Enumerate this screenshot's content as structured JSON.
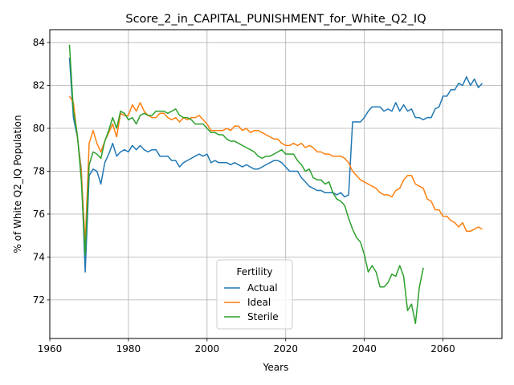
{
  "chart_data": {
    "type": "line",
    "title": "Score_2_in_CAPITAL_PUNISHMENT_for_White_Q2_IQ",
    "xlabel": "Years",
    "ylabel": "% of White Q2_IQ Population",
    "xlim": [
      1960,
      2075
    ],
    "ylim": [
      70.2,
      84.6
    ],
    "xticks": [
      1960,
      1980,
      2000,
      2020,
      2040,
      2060
    ],
    "yticks": [
      72,
      74,
      76,
      78,
      80,
      82,
      84
    ],
    "grid": true,
    "legend": {
      "title": "Fertility",
      "placement": "lower-center"
    },
    "series": [
      {
        "name": "Actual",
        "color": "#1f77b4",
        "points": [
          [
            1965,
            83.3
          ],
          [
            1966,
            80.5
          ],
          [
            1967,
            79.6
          ],
          [
            1968,
            78.1
          ],
          [
            1969,
            73.3
          ],
          [
            1970,
            77.8
          ],
          [
            1971,
            78.1
          ],
          [
            1972,
            78.0
          ],
          [
            1973,
            77.4
          ],
          [
            1974,
            78.4
          ],
          [
            1975,
            78.8
          ],
          [
            1976,
            79.3
          ],
          [
            1977,
            78.7
          ],
          [
            1978,
            78.9
          ],
          [
            1979,
            79.0
          ],
          [
            1980,
            78.9
          ],
          [
            1981,
            79.2
          ],
          [
            1982,
            79.0
          ],
          [
            1983,
            79.2
          ],
          [
            1984,
            79.0
          ],
          [
            1985,
            78.9
          ],
          [
            1986,
            79.0
          ],
          [
            1987,
            79.0
          ],
          [
            1988,
            78.7
          ],
          [
            1989,
            78.7
          ],
          [
            1990,
            78.7
          ],
          [
            1991,
            78.5
          ],
          [
            1992,
            78.5
          ],
          [
            1993,
            78.2
          ],
          [
            1994,
            78.4
          ],
          [
            1995,
            78.5
          ],
          [
            1996,
            78.6
          ],
          [
            1997,
            78.7
          ],
          [
            1998,
            78.8
          ],
          [
            1999,
            78.7
          ],
          [
            2000,
            78.8
          ],
          [
            2001,
            78.4
          ],
          [
            2002,
            78.5
          ],
          [
            2003,
            78.4
          ],
          [
            2004,
            78.4
          ],
          [
            2005,
            78.4
          ],
          [
            2006,
            78.3
          ],
          [
            2007,
            78.4
          ],
          [
            2008,
            78.3
          ],
          [
            2009,
            78.2
          ],
          [
            2010,
            78.3
          ],
          [
            2011,
            78.2
          ],
          [
            2012,
            78.1
          ],
          [
            2013,
            78.1
          ],
          [
            2014,
            78.2
          ],
          [
            2015,
            78.3
          ],
          [
            2016,
            78.4
          ],
          [
            2017,
            78.5
          ],
          [
            2018,
            78.5
          ],
          [
            2019,
            78.4
          ],
          [
            2020,
            78.2
          ],
          [
            2021,
            78.0
          ],
          [
            2022,
            78.0
          ],
          [
            2023,
            78.0
          ],
          [
            2024,
            77.7
          ],
          [
            2025,
            77.5
          ],
          [
            2026,
            77.3
          ],
          [
            2027,
            77.2
          ],
          [
            2028,
            77.1
          ],
          [
            2029,
            77.1
          ],
          [
            2030,
            77.0
          ],
          [
            2031,
            77.0
          ],
          [
            2032,
            77.0
          ],
          [
            2033,
            76.9
          ],
          [
            2034,
            77.0
          ],
          [
            2035,
            76.8
          ],
          [
            2036,
            76.9
          ],
          [
            2037,
            80.3
          ],
          [
            2038,
            80.3
          ],
          [
            2039,
            80.3
          ],
          [
            2040,
            80.5
          ],
          [
            2041,
            80.8
          ],
          [
            2042,
            81.0
          ],
          [
            2043,
            81.0
          ],
          [
            2044,
            81.0
          ],
          [
            2045,
            80.8
          ],
          [
            2046,
            80.9
          ],
          [
            2047,
            80.8
          ],
          [
            2048,
            81.2
          ],
          [
            2049,
            80.8
          ],
          [
            2050,
            81.1
          ],
          [
            2051,
            80.8
          ],
          [
            2052,
            80.9
          ],
          [
            2053,
            80.5
          ],
          [
            2054,
            80.5
          ],
          [
            2055,
            80.4
          ],
          [
            2056,
            80.5
          ],
          [
            2057,
            80.5
          ],
          [
            2058,
            80.9
          ],
          [
            2059,
            81.0
          ],
          [
            2060,
            81.5
          ],
          [
            2061,
            81.5
          ],
          [
            2062,
            81.8
          ],
          [
            2063,
            81.8
          ],
          [
            2064,
            82.1
          ],
          [
            2065,
            82.0
          ],
          [
            2066,
            82.4
          ],
          [
            2067,
            82.0
          ],
          [
            2068,
            82.3
          ],
          [
            2069,
            81.9
          ],
          [
            2070,
            82.1
          ]
        ]
      },
      {
        "name": "Ideal",
        "color": "#ff7f0e",
        "points": [
          [
            1965,
            81.5
          ],
          [
            1966,
            81.2
          ],
          [
            1967,
            79.6
          ],
          [
            1968,
            78.0
          ],
          [
            1969,
            74.6
          ],
          [
            1970,
            79.3
          ],
          [
            1971,
            79.9
          ],
          [
            1972,
            79.3
          ],
          [
            1973,
            78.9
          ],
          [
            1974,
            79.4
          ],
          [
            1975,
            79.8
          ],
          [
            1976,
            80.2
          ],
          [
            1977,
            79.6
          ],
          [
            1978,
            80.7
          ],
          [
            1979,
            80.6
          ],
          [
            1980,
            80.6
          ],
          [
            1981,
            81.1
          ],
          [
            1982,
            80.8
          ],
          [
            1983,
            81.2
          ],
          [
            1984,
            80.8
          ],
          [
            1985,
            80.6
          ],
          [
            1986,
            80.5
          ],
          [
            1987,
            80.5
          ],
          [
            1988,
            80.7
          ],
          [
            1989,
            80.7
          ],
          [
            1990,
            80.5
          ],
          [
            1991,
            80.4
          ],
          [
            1992,
            80.5
          ],
          [
            1993,
            80.3
          ],
          [
            1994,
            80.5
          ],
          [
            1995,
            80.4
          ],
          [
            1996,
            80.5
          ],
          [
            1997,
            80.5
          ],
          [
            1998,
            80.6
          ],
          [
            1999,
            80.4
          ],
          [
            2000,
            80.2
          ],
          [
            2001,
            79.9
          ],
          [
            2002,
            79.9
          ],
          [
            2003,
            79.9
          ],
          [
            2004,
            79.9
          ],
          [
            2005,
            80.0
          ],
          [
            2006,
            79.9
          ],
          [
            2007,
            80.1
          ],
          [
            2008,
            80.1
          ],
          [
            2009,
            79.9
          ],
          [
            2010,
            80.0
          ],
          [
            2011,
            79.8
          ],
          [
            2012,
            79.9
          ],
          [
            2013,
            79.9
          ],
          [
            2014,
            79.8
          ],
          [
            2015,
            79.7
          ],
          [
            2016,
            79.6
          ],
          [
            2017,
            79.5
          ],
          [
            2018,
            79.5
          ],
          [
            2019,
            79.3
          ],
          [
            2020,
            79.2
          ],
          [
            2021,
            79.2
          ],
          [
            2022,
            79.3
          ],
          [
            2023,
            79.2
          ],
          [
            2024,
            79.3
          ],
          [
            2025,
            79.1
          ],
          [
            2026,
            79.2
          ],
          [
            2027,
            79.1
          ],
          [
            2028,
            78.9
          ],
          [
            2029,
            78.9
          ],
          [
            2030,
            78.8
          ],
          [
            2031,
            78.8
          ],
          [
            2032,
            78.7
          ],
          [
            2033,
            78.7
          ],
          [
            2034,
            78.7
          ],
          [
            2035,
            78.6
          ],
          [
            2036,
            78.4
          ],
          [
            2037,
            78.0
          ],
          [
            2038,
            77.8
          ],
          [
            2039,
            77.6
          ],
          [
            2040,
            77.5
          ],
          [
            2041,
            77.4
          ],
          [
            2042,
            77.3
          ],
          [
            2043,
            77.2
          ],
          [
            2044,
            77.0
          ],
          [
            2045,
            76.9
          ],
          [
            2046,
            76.9
          ],
          [
            2047,
            76.8
          ],
          [
            2048,
            77.1
          ],
          [
            2049,
            77.2
          ],
          [
            2050,
            77.6
          ],
          [
            2051,
            77.8
          ],
          [
            2052,
            77.8
          ],
          [
            2053,
            77.4
          ],
          [
            2054,
            77.3
          ],
          [
            2055,
            77.2
          ],
          [
            2056,
            76.7
          ],
          [
            2057,
            76.6
          ],
          [
            2058,
            76.2
          ],
          [
            2059,
            76.2
          ],
          [
            2060,
            75.9
          ],
          [
            2061,
            75.9
          ],
          [
            2062,
            75.7
          ],
          [
            2063,
            75.6
          ],
          [
            2064,
            75.4
          ],
          [
            2065,
            75.6
          ],
          [
            2066,
            75.2
          ],
          [
            2067,
            75.2
          ],
          [
            2068,
            75.3
          ],
          [
            2069,
            75.4
          ],
          [
            2070,
            75.3
          ]
        ]
      },
      {
        "name": "Sterile",
        "color": "#2ca02c",
        "points": [
          [
            1965,
            83.9
          ],
          [
            1966,
            80.8
          ],
          [
            1967,
            79.7
          ],
          [
            1968,
            77.6
          ],
          [
            1969,
            74.1
          ],
          [
            1970,
            78.3
          ],
          [
            1971,
            78.9
          ],
          [
            1972,
            78.8
          ],
          [
            1973,
            78.6
          ],
          [
            1974,
            79.4
          ],
          [
            1975,
            79.9
          ],
          [
            1976,
            80.5
          ],
          [
            1977,
            80.0
          ],
          [
            1978,
            80.8
          ],
          [
            1979,
            80.7
          ],
          [
            1980,
            80.4
          ],
          [
            1981,
            80.5
          ],
          [
            1982,
            80.2
          ],
          [
            1983,
            80.6
          ],
          [
            1984,
            80.7
          ],
          [
            1985,
            80.6
          ],
          [
            1986,
            80.6
          ],
          [
            1987,
            80.8
          ],
          [
            1988,
            80.8
          ],
          [
            1989,
            80.8
          ],
          [
            1990,
            80.7
          ],
          [
            1991,
            80.8
          ],
          [
            1992,
            80.9
          ],
          [
            1993,
            80.6
          ],
          [
            1994,
            80.5
          ],
          [
            1995,
            80.5
          ],
          [
            1996,
            80.4
          ],
          [
            1997,
            80.2
          ],
          [
            1998,
            80.2
          ],
          [
            1999,
            80.2
          ],
          [
            2000,
            80.0
          ],
          [
            2001,
            79.8
          ],
          [
            2002,
            79.8
          ],
          [
            2003,
            79.7
          ],
          [
            2004,
            79.7
          ],
          [
            2005,
            79.5
          ],
          [
            2006,
            79.4
          ],
          [
            2007,
            79.4
          ],
          [
            2008,
            79.3
          ],
          [
            2009,
            79.2
          ],
          [
            2010,
            79.1
          ],
          [
            2011,
            79.0
          ],
          [
            2012,
            78.9
          ],
          [
            2013,
            78.7
          ],
          [
            2014,
            78.6
          ],
          [
            2015,
            78.7
          ],
          [
            2016,
            78.7
          ],
          [
            2017,
            78.8
          ],
          [
            2018,
            78.9
          ],
          [
            2019,
            79.0
          ],
          [
            2020,
            78.8
          ],
          [
            2021,
            78.8
          ],
          [
            2022,
            78.8
          ],
          [
            2023,
            78.5
          ],
          [
            2024,
            78.3
          ],
          [
            2025,
            78.0
          ],
          [
            2026,
            78.1
          ],
          [
            2027,
            77.7
          ],
          [
            2028,
            77.6
          ],
          [
            2029,
            77.6
          ],
          [
            2030,
            77.4
          ],
          [
            2031,
            77.5
          ],
          [
            2032,
            77.0
          ],
          [
            2033,
            76.7
          ],
          [
            2034,
            76.6
          ],
          [
            2035,
            76.4
          ],
          [
            2036,
            75.8
          ],
          [
            2037,
            75.3
          ],
          [
            2038,
            74.9
          ],
          [
            2039,
            74.7
          ],
          [
            2040,
            74.1
          ],
          [
            2041,
            73.3
          ],
          [
            2042,
            73.6
          ],
          [
            2043,
            73.3
          ],
          [
            2044,
            72.6
          ],
          [
            2045,
            72.6
          ],
          [
            2046,
            72.8
          ],
          [
            2047,
            73.2
          ],
          [
            2048,
            73.1
          ],
          [
            2049,
            73.6
          ],
          [
            2050,
            73.1
          ],
          [
            2051,
            71.5
          ],
          [
            2052,
            71.8
          ],
          [
            2053,
            70.9
          ],
          [
            2054,
            72.6
          ],
          [
            2055,
            73.5
          ]
        ]
      }
    ]
  }
}
